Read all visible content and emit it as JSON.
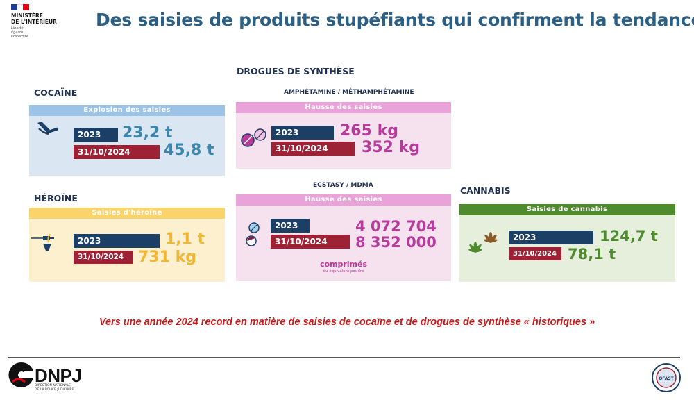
{
  "header": {
    "ministry_line1": "MINISTÈRE",
    "ministry_line2": "DE L'INTÉRIEUR",
    "motto1": "Liberté",
    "motto2": "Égalité",
    "motto3": "Fraternité",
    "title": "Des saisies de produits stupéfiants qui confirment la tendance"
  },
  "synth_title": "DROGUES DE SYNTHÈSE",
  "cocaine": {
    "label": "COCAÏNE",
    "banner": "Explosion des saisies",
    "year1": "2023",
    "value1": "23,2 t",
    "year2": "31/10/2024",
    "value2": "45,8 t"
  },
  "amphet": {
    "label": "AMPHÉTAMINE / MÉTHAMPHÉTAMINE",
    "banner": "Hausse des saisies",
    "year1": "2023",
    "value1": "265 kg",
    "year2": "31/10/2024",
    "value2": "352 kg"
  },
  "heroine": {
    "label": "HÉROÏNE",
    "banner": "Saisies d'héroïne",
    "year1": "2023",
    "value1": "1,1 t",
    "year2": "31/10/2024",
    "value2": "731 kg"
  },
  "ecstasy": {
    "label": "ECSTASY / MDMA",
    "banner": "Hausse des saisies",
    "year1": "2023",
    "value1": "4 072 704",
    "year2": "31/10/2024",
    "value2": "8 352 000",
    "unit": "comprimés",
    "unit_note": "ou équivalent poudre"
  },
  "cannabis": {
    "label": "CANNABIS",
    "banner": "Saisies de cannabis",
    "year1": "2023",
    "value1": "124,7 t",
    "year2": "31/10/2024",
    "value2": "78,1 t"
  },
  "conclusion": "Vers une année 2024 record en matière de saisies de cocaïne et de drogues de synthèse « historiques »",
  "footer": {
    "dnpj": "DNPJ",
    "dnpj_sub1": "DIRECTION NATIONALE",
    "dnpj_sub2": "DE LA POLICE JUDICIAIRE",
    "ofast": "OFAST"
  },
  "colors": {
    "title": "#2b5f86",
    "navy": "#1c3f66",
    "crimson": "#9e2236",
    "cocaine_bg": "#dae6f1",
    "cocaine_head": "#9cc3e5",
    "cocaine_val": "#3b86ae",
    "synth_bg": "#f6e2ef",
    "synth_head": "#eaa3d8",
    "synth_val": "#b53c9b",
    "heroine_bg": "#fdf0cf",
    "heroine_head": "#fad46b",
    "heroine_val": "#f2b632",
    "cannabis_bg": "#e5efdc",
    "cannabis_head": "#4e8b2f",
    "cannabis_val": "#4e8b2f"
  }
}
